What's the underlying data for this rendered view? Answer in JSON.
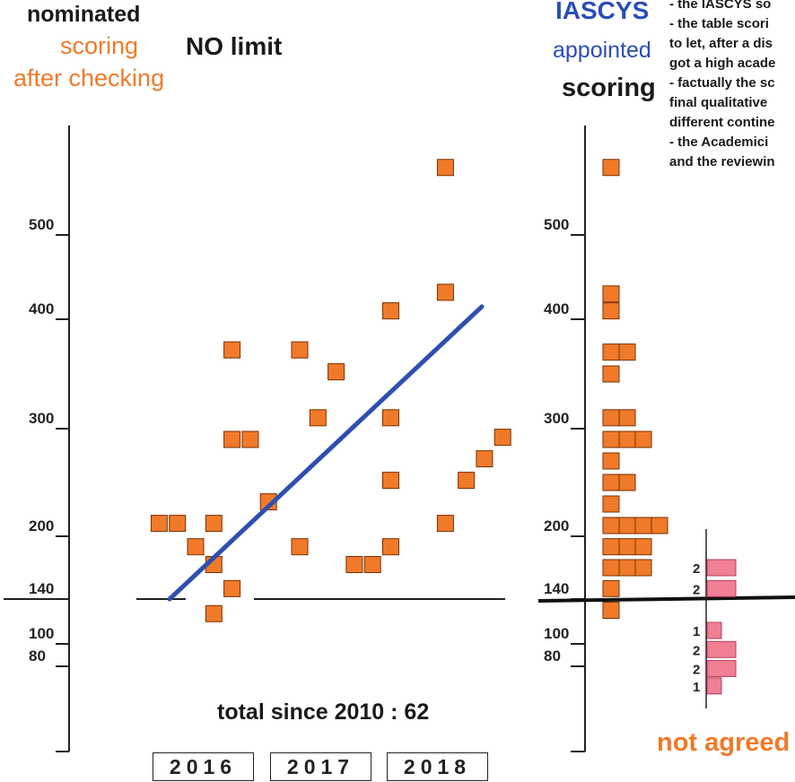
{
  "header": {
    "nominated": "nominated",
    "scoring_orange": "scoring",
    "after_checking": "after checking",
    "no_limit": "NO limit",
    "iascys": "IASCYS",
    "appointed": "appointed",
    "scoring_black": "scoring"
  },
  "notes": [
    "- the IASCYS so",
    "- the table scori",
    "to let, after a dis",
    "got a high acade",
    "- factually the sc",
    "final  qualitative",
    "different contine",
    "- the Academici",
    "and the reviewin"
  ],
  "total_label": "total since 2010 :  62",
  "not_agreed": "not agreed",
  "years": [
    "2016",
    "2017",
    "2018"
  ],
  "colors": {
    "square": "#f07a2a",
    "pink": "#f07f95",
    "trend": "#2e4fb0",
    "axis": "#222222",
    "text_orange": "#f07a2a",
    "text_blue": "#2b4db5"
  },
  "chart_data": [
    {
      "type": "scatter",
      "title": "NO limit",
      "ylabel": "nominated scoring after checking",
      "yticks": [
        80,
        100,
        140,
        200,
        300,
        400,
        500
      ],
      "ylim": [
        0,
        580
      ],
      "categories": [
        "2016",
        "2017",
        "2018"
      ],
      "points": [
        {
          "x": 2015.72,
          "y": 212
        },
        {
          "x": 2015.86,
          "y": 212
        },
        {
          "x": 2016.0,
          "y": 190
        },
        {
          "x": 2016.14,
          "y": 212
        },
        {
          "x": 2016.14,
          "y": 173
        },
        {
          "x": 2016.14,
          "y": 127
        },
        {
          "x": 2016.28,
          "y": 150
        },
        {
          "x": 2016.28,
          "y": 372
        },
        {
          "x": 2016.28,
          "y": 290
        },
        {
          "x": 2016.42,
          "y": 290
        },
        {
          "x": 2016.56,
          "y": 232
        },
        {
          "x": 2016.8,
          "y": 372
        },
        {
          "x": 2016.8,
          "y": 190
        },
        {
          "x": 2016.94,
          "y": 310
        },
        {
          "x": 2017.08,
          "y": 352
        },
        {
          "x": 2017.22,
          "y": 173
        },
        {
          "x": 2017.36,
          "y": 173
        },
        {
          "x": 2017.5,
          "y": 410
        },
        {
          "x": 2017.5,
          "y": 310
        },
        {
          "x": 2017.5,
          "y": 252
        },
        {
          "x": 2017.5,
          "y": 190
        },
        {
          "x": 2017.92,
          "y": 570
        },
        {
          "x": 2017.92,
          "y": 432
        },
        {
          "x": 2017.92,
          "y": 212
        },
        {
          "x": 2018.08,
          "y": 252
        },
        {
          "x": 2018.22,
          "y": 272
        },
        {
          "x": 2018.36,
          "y": 292
        }
      ],
      "trend_line": {
        "from": {
          "x": 2015.8,
          "y": 140
        },
        "to": {
          "x": 2018.2,
          "y": 415
        }
      }
    },
    {
      "type": "histogram",
      "title": "appointed scoring",
      "yticks": [
        80,
        100,
        140,
        200,
        300,
        400,
        500
      ],
      "bins_step": 20,
      "bins": [
        {
          "y": 570,
          "count": 1
        },
        {
          "y": 430,
          "count": 1
        },
        {
          "y": 410,
          "count": 1
        },
        {
          "y": 370,
          "count": 2
        },
        {
          "y": 350,
          "count": 1
        },
        {
          "y": 310,
          "count": 2
        },
        {
          "y": 290,
          "count": 3
        },
        {
          "y": 270,
          "count": 1
        },
        {
          "y": 250,
          "count": 2
        },
        {
          "y": 230,
          "count": 1
        },
        {
          "y": 210,
          "count": 4
        },
        {
          "y": 190,
          "count": 3
        },
        {
          "y": 170,
          "count": 3
        },
        {
          "y": 150,
          "count": 1
        },
        {
          "y": 130,
          "count": 1
        }
      ]
    },
    {
      "type": "bar",
      "title": "not agreed",
      "bars": [
        {
          "label": "2",
          "y": 170,
          "count": 2
        },
        {
          "label": "2",
          "y": 150,
          "count": 2
        },
        {
          "label": "1",
          "y": 112,
          "count": 1
        },
        {
          "label": "2",
          "y": 95,
          "count": 2
        },
        {
          "label": "2",
          "y": 78,
          "count": 2
        },
        {
          "label": "1",
          "y": 62,
          "count": 1
        }
      ]
    }
  ]
}
